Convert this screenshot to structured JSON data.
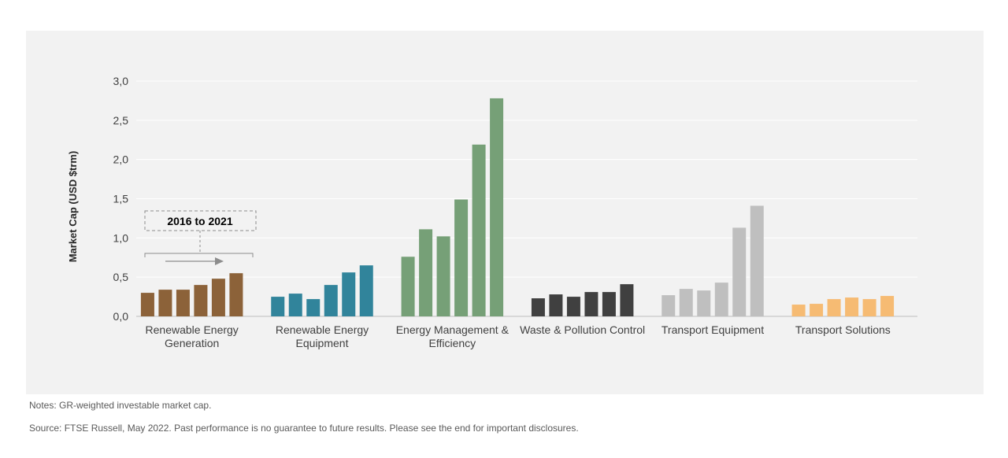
{
  "chart_data": {
    "type": "bar",
    "ylabel": "Market Cap (USD $trm)",
    "ylim": [
      0,
      3.0
    ],
    "yticks": [
      "0,0",
      "0,5",
      "1,0",
      "1,5",
      "2,0",
      "2,5",
      "3,0"
    ],
    "grid": true,
    "annotation": "2016 to 2021",
    "groups": [
      {
        "label_lines": [
          "Renewable Energy",
          "Generation"
        ],
        "color": "#8c6239",
        "values": [
          0.3,
          0.34,
          0.34,
          0.4,
          0.48,
          0.55
        ]
      },
      {
        "label_lines": [
          "Renewable Energy",
          "Equipment"
        ],
        "color": "#31849b",
        "values": [
          0.25,
          0.29,
          0.22,
          0.4,
          0.56,
          0.65
        ]
      },
      {
        "label_lines": [
          "Energy Management &",
          "Efficiency"
        ],
        "color": "#76a077",
        "values": [
          0.76,
          1.11,
          1.02,
          1.49,
          2.19,
          2.78
        ]
      },
      {
        "label_lines": [
          "Waste & Pollution Control"
        ],
        "color": "#404040",
        "values": [
          0.23,
          0.28,
          0.25,
          0.31,
          0.31,
          0.41
        ]
      },
      {
        "label_lines": [
          "Transport Equipment"
        ],
        "color": "#bfbfbf",
        "values": [
          0.27,
          0.35,
          0.33,
          0.43,
          1.13,
          1.41
        ]
      },
      {
        "label_lines": [
          "Transport Solutions"
        ],
        "color": "#f6bb73",
        "values": [
          0.15,
          0.16,
          0.22,
          0.24,
          0.22,
          0.26
        ]
      }
    ]
  },
  "footer": {
    "note": "Notes: GR-weighted investable market cap.",
    "source": "Source: FTSE Russell, May 2022. Past performance is no guarantee to future results. Please see the end for important disclosures."
  }
}
